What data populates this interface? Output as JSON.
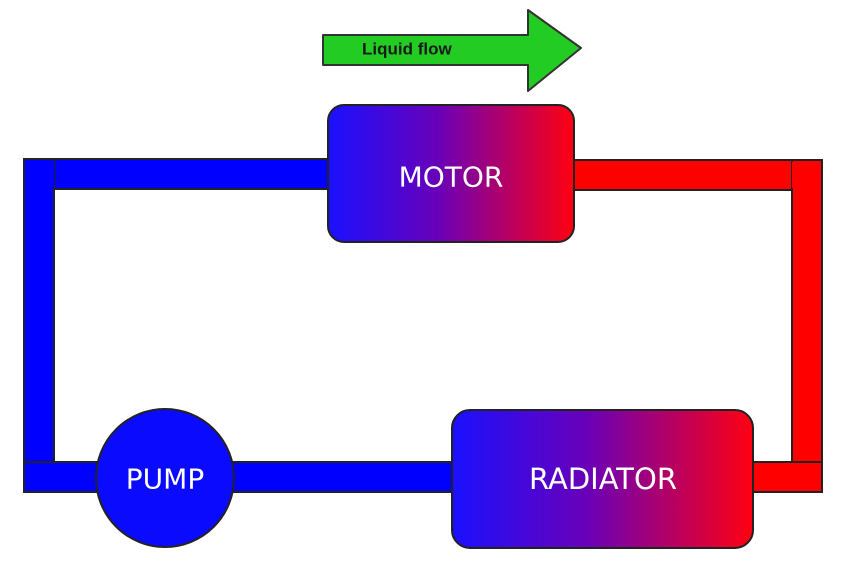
{
  "flow_arrow": {
    "label": "Liquid flow",
    "color": "#22cc22"
  },
  "components": {
    "motor": {
      "label": "MOTOR"
    },
    "radiator": {
      "label": "RADIATOR"
    },
    "pump": {
      "label": "PUMP"
    }
  },
  "colors": {
    "cold": "#0000ff",
    "hot": "#ff0000",
    "outline": "#222222",
    "text": "#ffffff"
  }
}
